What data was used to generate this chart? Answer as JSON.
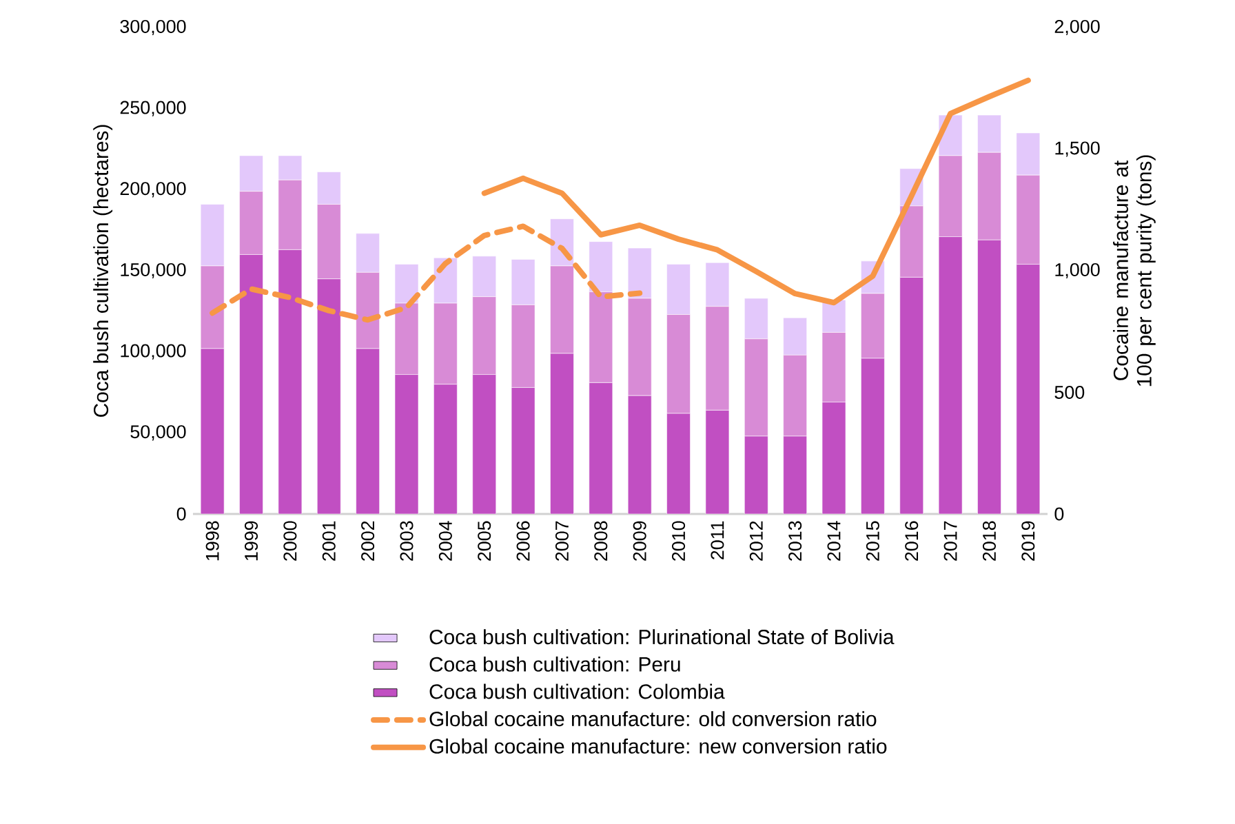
{
  "chart_data": {
    "type": "bar",
    "stacked": true,
    "ylabel": "Coca bush cultivation (hectares)",
    "y2label": "Cocaine manufacture at 100 per cent purity (tons)",
    "categories": [
      "1998",
      "1999",
      "2000",
      "2001",
      "2002",
      "2003",
      "2004",
      "2005",
      "2006",
      "2007",
      "2008",
      "2009",
      "2010",
      "2011",
      "2012",
      "2013",
      "2014",
      "2015",
      "2016",
      "2017",
      "2018",
      "2019"
    ],
    "series": [
      {
        "name": "Coca bush cultivation: Colombia",
        "color": "#c14fc2",
        "values": [
          102000,
          160000,
          163000,
          145000,
          102000,
          86000,
          80000,
          86000,
          78000,
          99000,
          81000,
          73000,
          62000,
          64000,
          48000,
          48000,
          69000,
          96000,
          146000,
          171000,
          169000,
          154000
        ]
      },
      {
        "name": "Coca bush cultivation: Peru",
        "color": "#d88bd6",
        "values": [
          51000,
          39000,
          43000,
          46000,
          47000,
          44000,
          50000,
          48000,
          51000,
          54000,
          56000,
          60000,
          61000,
          64000,
          60000,
          50000,
          43000,
          40000,
          44000,
          50000,
          54000,
          55000
        ]
      },
      {
        "name": "Coca bush cultivation: Plurinational State of Bolivia",
        "color": "#e3c8fb",
        "values": [
          38000,
          22000,
          15000,
          20000,
          24000,
          24000,
          28000,
          25000,
          28000,
          29000,
          31000,
          31000,
          31000,
          27000,
          25000,
          23000,
          20000,
          20000,
          23000,
          25000,
          23000,
          26000
        ]
      },
      {
        "name": "Global cocaine manufacture: old conversion ratio",
        "type": "line",
        "axis": "y2",
        "line_style": "dashed",
        "color": "#f79646",
        "values": [
          826,
          925,
          890,
          836,
          798,
          849,
          1030,
          1145,
          1183,
          1092,
          893,
          908,
          null,
          null,
          null,
          null,
          null,
          null,
          null,
          null,
          null,
          null
        ]
      },
      {
        "name": "Global cocaine manufacture: new conversion ratio",
        "type": "line",
        "axis": "y2",
        "line_style": "solid",
        "color": "#f79646",
        "values": [
          null,
          null,
          null,
          null,
          null,
          null,
          null,
          1319,
          1380,
          1319,
          1148,
          1187,
          1130,
          1086,
          997,
          906,
          869,
          978,
          1309,
          1646,
          1716,
          1783
        ]
      }
    ],
    "ylim": [
      0,
      300000
    ],
    "yticks": [
      0,
      {
        "value": 50000,
        "label": "50,000"
      },
      {
        "value": 100000,
        "label": "100,000"
      },
      {
        "value": 150000,
        "label": "150,000"
      },
      {
        "value": 200000,
        "label": "200,000"
      },
      {
        "value": 250000,
        "label": "250,000"
      },
      {
        "value": 300000,
        "label": "300,000"
      }
    ],
    "y2lim": [
      0,
      2000
    ],
    "y2ticks": [
      0,
      500,
      {
        "value": 1000,
        "label": "1,000"
      },
      {
        "value": 1500,
        "label": "1,500"
      },
      {
        "value": 2000,
        "label": "2,000"
      }
    ],
    "grid": false,
    "legend": "bottom",
    "marker": "none"
  }
}
